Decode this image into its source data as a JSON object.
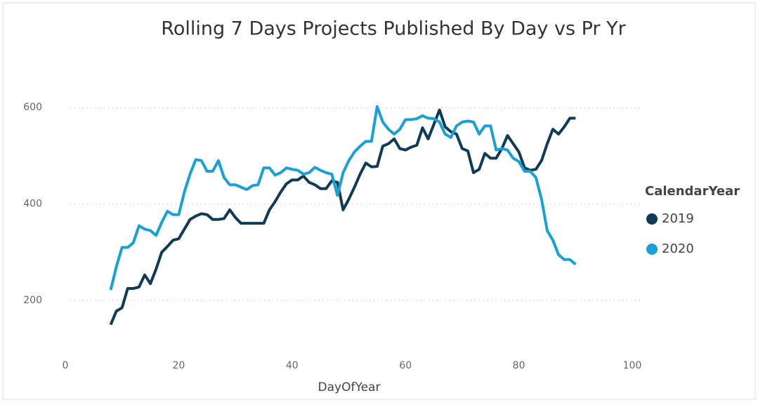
{
  "chart_data": {
    "type": "line",
    "title": "Rolling 7 Days Projects Published By Day vs Pr Yr",
    "x_label": "DayOfYear",
    "legend_title": "CalendarYear",
    "legend": "right",
    "x": [
      8,
      9,
      10,
      11,
      12,
      13,
      14,
      15,
      16,
      17,
      18,
      19,
      20,
      21,
      22,
      23,
      24,
      25,
      26,
      27,
      28,
      29,
      30,
      31,
      32,
      33,
      34,
      35,
      36,
      37,
      38,
      39,
      40,
      41,
      42,
      43,
      44,
      45,
      46,
      47,
      48,
      49,
      50,
      51,
      52,
      53,
      54,
      55,
      56,
      57,
      58,
      59,
      60,
      61,
      62,
      63,
      64,
      65,
      66,
      67,
      68,
      69,
      70,
      71,
      72,
      73,
      74,
      75,
      76,
      77,
      78,
      79,
      80,
      81,
      82,
      83,
      84,
      85,
      86,
      87,
      88,
      89,
      90
    ],
    "series": [
      {
        "name": "2019",
        "color": "#0f3b57",
        "values": [
          150,
          178,
          185,
          225,
          225,
          228,
          253,
          235,
          265,
          300,
          312,
          325,
          328,
          348,
          368,
          375,
          380,
          378,
          368,
          368,
          370,
          388,
          372,
          360,
          360,
          360,
          360,
          360,
          388,
          405,
          425,
          442,
          450,
          450,
          458,
          445,
          440,
          432,
          432,
          448,
          445,
          388,
          410,
          435,
          462,
          485,
          477,
          478,
          520,
          525,
          535,
          515,
          512,
          518,
          522,
          558,
          535,
          565,
          595,
          560,
          550,
          545,
          515,
          510,
          465,
          472,
          505,
          495,
          495,
          515,
          542,
          525,
          508,
          475,
          470,
          472,
          490,
          525,
          555,
          545,
          560,
          578,
          578
        ]
      },
      {
        "name": "2020",
        "color": "#1aa0d8",
        "values": [
          222,
          270,
          310,
          310,
          320,
          355,
          348,
          345,
          335,
          362,
          385,
          378,
          378,
          425,
          462,
          492,
          490,
          468,
          468,
          490,
          455,
          440,
          440,
          435,
          430,
          438,
          440,
          475,
          475,
          460,
          465,
          475,
          472,
          470,
          462,
          465,
          476,
          470,
          465,
          462,
          418,
          465,
          490,
          508,
          520,
          530,
          530,
          602,
          570,
          555,
          545,
          555,
          575,
          575,
          577,
          583,
          578,
          577,
          570,
          545,
          538,
          562,
          570,
          572,
          570,
          545,
          562,
          562,
          512,
          515,
          512,
          495,
          488,
          468,
          468,
          455,
          410,
          345,
          325,
          295,
          285,
          285,
          275
        ]
      }
    ],
    "xlim": [
      0,
      100
    ],
    "xticks": [
      0,
      20,
      40,
      60,
      80,
      100
    ],
    "ylim": [
      110,
      692
    ],
    "yticks": [
      200,
      400,
      600
    ],
    "grid": true
  }
}
